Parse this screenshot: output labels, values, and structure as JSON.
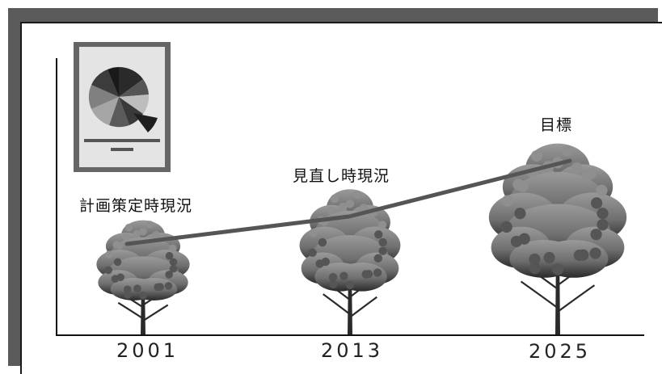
{
  "stages": [
    {
      "label": "計画策定時現況",
      "year": "2001"
    },
    {
      "label": "見直し時現況",
      "year": "2013"
    },
    {
      "label": "目標",
      "year": "2025"
    }
  ],
  "colors": {
    "frame": "#5a5a5a",
    "trend_line": "#555555",
    "axis": "#111111",
    "board_border": "#666666",
    "board_fill": "#e4e4e4"
  },
  "icons": {
    "board": "pie-chart-board-icon",
    "tree": "tree-icon"
  }
}
